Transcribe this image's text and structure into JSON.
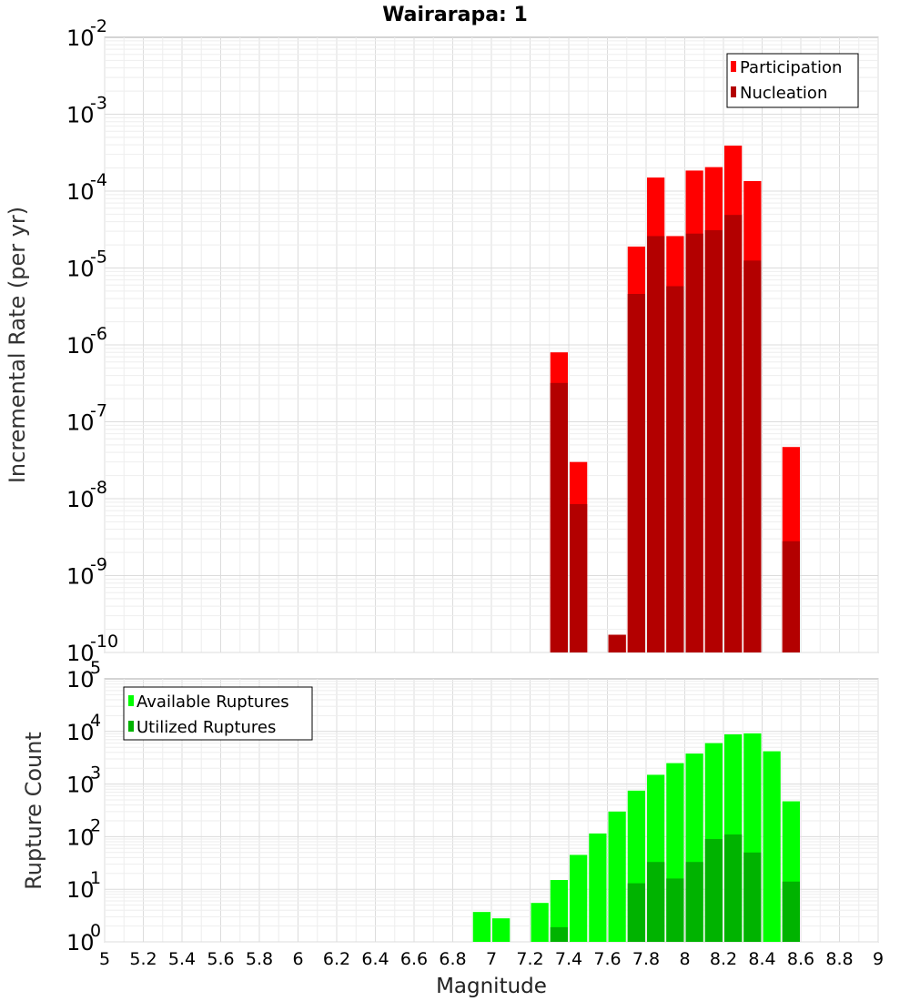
{
  "chart_data": [
    {
      "type": "bar",
      "title": "Wairarapa: 1",
      "xlabel": "",
      "ylabel": "Incremental Rate (per yr)",
      "yscale": "log",
      "ylim_exp": [
        -10,
        -2
      ],
      "ytick_base": "10",
      "xlim": [
        5.0,
        9.0
      ],
      "bar_width": 0.1,
      "legend_position": "top-right",
      "series": [
        {
          "name": "Participation",
          "color": "#ff0000",
          "x": [
            7.35,
            7.45,
            7.65,
            7.75,
            7.85,
            7.95,
            8.05,
            8.15,
            8.25,
            8.35,
            8.55
          ],
          "values": [
            8e-07,
            3e-08,
            1.7e-10,
            1.9e-05,
            0.00015,
            2.6e-05,
            0.000185,
            0.000205,
            0.00039,
            0.000135,
            4.7e-08
          ]
        },
        {
          "name": "Nucleation",
          "color": "#b30000",
          "x": [
            7.35,
            7.45,
            7.65,
            7.75,
            7.85,
            7.95,
            8.05,
            8.15,
            8.25,
            8.35,
            8.55
          ],
          "values": [
            3.2e-07,
            8.5e-09,
            1.7e-10,
            4.6e-06,
            2.6e-05,
            5.8e-06,
            2.8e-05,
            3.1e-05,
            4.9e-05,
            1.25e-05,
            2.8e-09
          ]
        }
      ]
    },
    {
      "type": "bar",
      "title": "",
      "xlabel": "Magnitude",
      "ylabel": "Rupture Count",
      "yscale": "log",
      "ylim_exp": [
        0,
        5
      ],
      "ytick_base": "10",
      "xlim": [
        5.0,
        9.0
      ],
      "x_ticks": [
        "5",
        "5.2",
        "5.4",
        "5.6",
        "5.8",
        "6",
        "6.2",
        "6.4",
        "6.6",
        "6.8",
        "7",
        "7.2",
        "7.4",
        "7.6",
        "7.8",
        "8",
        "8.2",
        "8.4",
        "8.6",
        "8.8",
        "9"
      ],
      "bar_width": 0.1,
      "legend_position": "top-left",
      "series": [
        {
          "name": "Available Ruptures",
          "color": "#00ff00",
          "x": [
            6.95,
            7.05,
            7.25,
            7.35,
            7.45,
            7.55,
            7.65,
            7.75,
            7.85,
            7.95,
            8.05,
            8.15,
            8.25,
            8.35,
            8.45,
            8.55,
            8.65
          ],
          "values": [
            3.7,
            2.8,
            5.5,
            15,
            45,
            115,
            300,
            750,
            1500,
            2500,
            3800,
            6000,
            8800,
            9200,
            4200,
            470,
            1
          ]
        },
        {
          "name": "Utilized Ruptures",
          "color": "#00b300",
          "x": [
            7.35,
            7.45,
            7.65,
            7.75,
            7.85,
            7.95,
            8.05,
            8.15,
            8.25,
            8.35,
            8.55
          ],
          "values": [
            1.9,
            1.0,
            1.0,
            13,
            33,
            16,
            33,
            90,
            110,
            50,
            14
          ]
        }
      ]
    }
  ]
}
